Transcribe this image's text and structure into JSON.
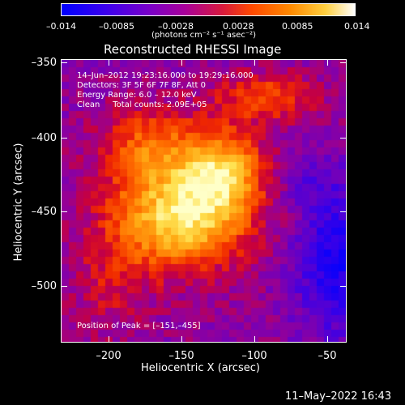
{
  "colorbar": {
    "ticks": [
      "–0.014",
      "–0.0085",
      "–0.0028",
      "0.0028",
      "0.0085",
      "0.014"
    ],
    "units": "(photons cm⁻² s⁻¹ asec⁻²)"
  },
  "title": "Reconstructed RHESSI Image",
  "annotations": {
    "time_range": "14–Jun–2012 19:23:16.000 to 19:29:16.000",
    "detectors": "Detectors: 3F 5F 6F 7F 8F, Att 0",
    "energy": "Energy Range: 6.0 – 12.0 keV",
    "clean": "Clean     Total counts: 2.09E+05",
    "peak": "Position of Peak = [–151,–455]"
  },
  "axes": {
    "xlabel": "Heliocentric X (arcsec)",
    "ylabel": "Heliocentric Y (arcsec)",
    "xticks": [
      "–200",
      "–150",
      "–100",
      "–50"
    ],
    "yticks": [
      "–350",
      "–400",
      "–450",
      "–500"
    ],
    "xrange": [
      -230,
      -40
    ],
    "yrange": [
      -540,
      -347
    ]
  },
  "footer": {
    "timestamp": "11–May–2022 16:43"
  }
}
